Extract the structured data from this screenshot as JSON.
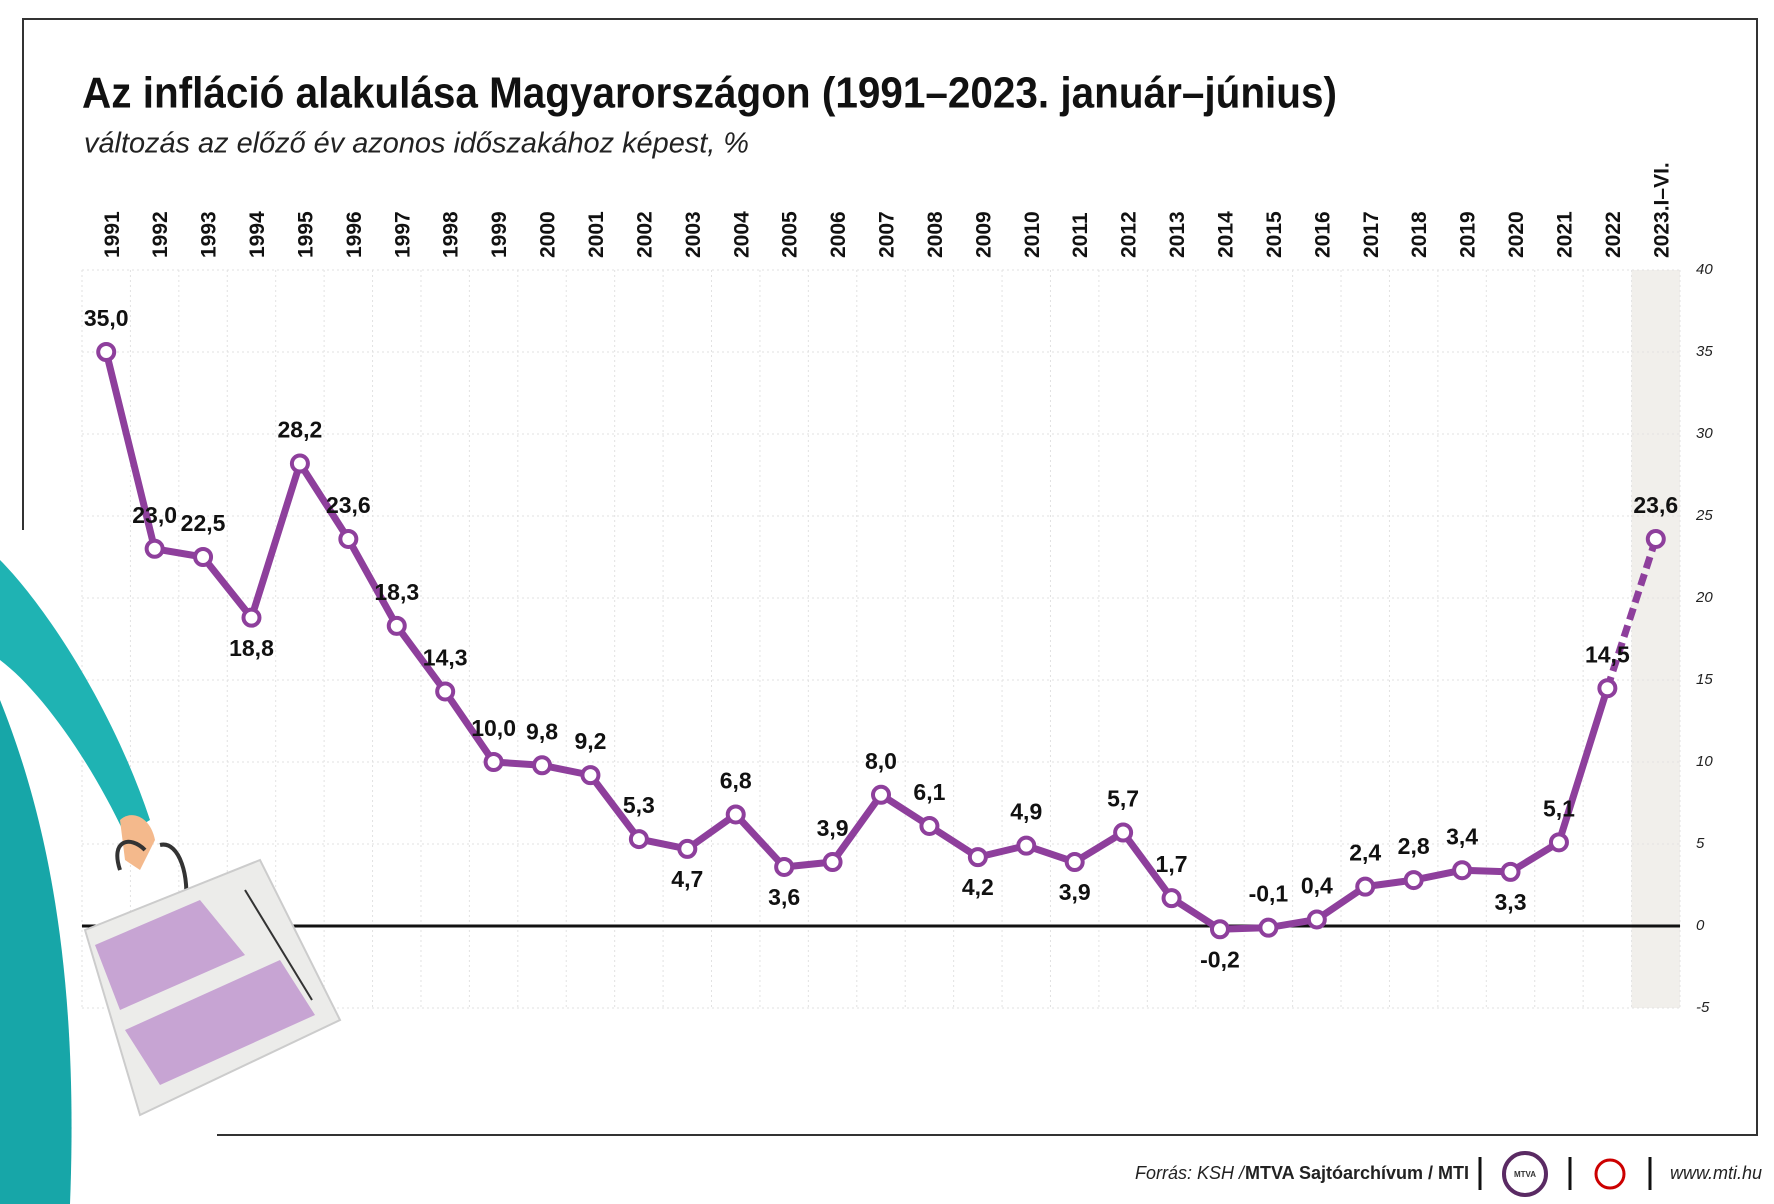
{
  "chart_data": {
    "type": "line",
    "title": "Az infláció alakulása Magyarországon (1991–2023. január–június)",
    "subtitle": "változás az előző év azonos időszakához képest, %",
    "categories": [
      "1991",
      "1992",
      "1993",
      "1994",
      "1995",
      "1996",
      "1997",
      "1998",
      "1999",
      "2000",
      "2001",
      "2002",
      "2003",
      "2004",
      "2005",
      "2006",
      "2007",
      "2008",
      "2009",
      "2010",
      "2011",
      "2012",
      "2013",
      "2014",
      "2015",
      "2016",
      "2017",
      "2018",
      "2019",
      "2020",
      "2021",
      "2022",
      "2023.I–VI."
    ],
    "values": [
      35.0,
      23.0,
      22.5,
      18.8,
      28.2,
      23.6,
      18.3,
      14.3,
      10.0,
      9.8,
      9.2,
      5.3,
      4.7,
      6.8,
      3.6,
      3.9,
      8.0,
      6.1,
      4.2,
      4.9,
      3.9,
      5.7,
      1.7,
      -0.2,
      -0.1,
      0.4,
      2.4,
      2.8,
      3.4,
      3.3,
      5.1,
      14.5,
      23.6
    ],
    "value_labels": [
      "35,0",
      "23,0",
      "22,5",
      "18,8",
      "28,2",
      "23,6",
      "18,3",
      "14,3",
      "10,0",
      "9,8",
      "9,2",
      "5,3",
      "4,7",
      "6,8",
      "3,6",
      "3,9",
      "8,0",
      "6,1",
      "4,2",
      "4,9",
      "3,9",
      "5,7",
      "1,7",
      "-0,2",
      "-0,1",
      "0,4",
      "2,4",
      "2,8",
      "3,4",
      "3,3",
      "5,1",
      "14,5",
      "23,6"
    ],
    "color": "#8e3f9c",
    "ylim": [
      -5,
      40
    ],
    "yticks": [
      40,
      35,
      30,
      25,
      20,
      15,
      10,
      5,
      0,
      -5
    ],
    "grid": true,
    "dashed_last_segment": true,
    "highlight_last_category": true,
    "source": "Forrás: KSH /",
    "source_bold": "MTVA Sajtóarchívum / MTI",
    "logo_text": "MTVA",
    "website": "www.mti.hu"
  }
}
